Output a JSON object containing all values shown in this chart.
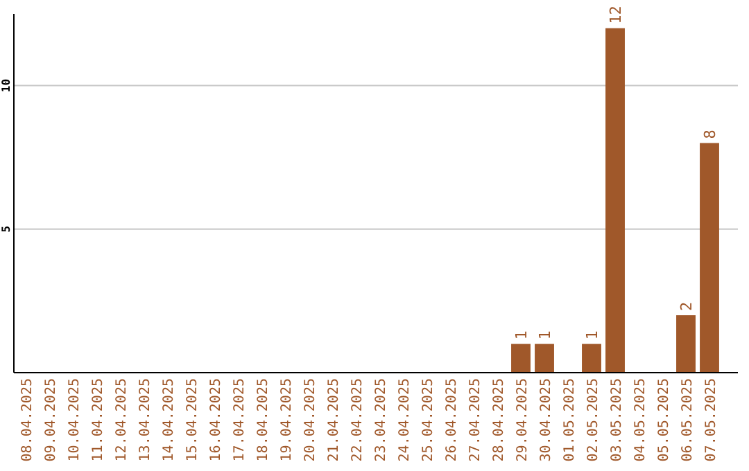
{
  "chart_data": {
    "type": "bar",
    "categories": [
      "08.04.2025",
      "09.04.2025",
      "10.04.2025",
      "11.04.2025",
      "12.04.2025",
      "13.04.2025",
      "14.04.2025",
      "15.04.2025",
      "16.04.2025",
      "17.04.2025",
      "18.04.2025",
      "19.04.2025",
      "20.04.2025",
      "21.04.2025",
      "22.04.2025",
      "23.04.2025",
      "24.04.2025",
      "25.04.2025",
      "26.04.2025",
      "27.04.2025",
      "28.04.2025",
      "29.04.2025",
      "30.04.2025",
      "01.05.2025",
      "02.05.2025",
      "03.05.2025",
      "04.05.2025",
      "05.05.2025",
      "06.05.2025",
      "07.05.2025"
    ],
    "values": [
      0,
      0,
      0,
      0,
      0,
      0,
      0,
      0,
      0,
      0,
      0,
      0,
      0,
      0,
      0,
      0,
      0,
      0,
      0,
      0,
      0,
      1,
      1,
      0,
      1,
      12,
      0,
      0,
      2,
      8
    ],
    "value_labels": [
      null,
      null,
      null,
      null,
      null,
      null,
      null,
      null,
      null,
      null,
      null,
      null,
      null,
      null,
      null,
      null,
      null,
      null,
      null,
      null,
      null,
      "1",
      "1",
      null,
      "1",
      "12",
      null,
      null,
      "2",
      "8"
    ],
    "color": "#a0582a",
    "ylim": [
      0,
      12.5
    ],
    "yticks": [
      5,
      10
    ],
    "grid": "y"
  }
}
